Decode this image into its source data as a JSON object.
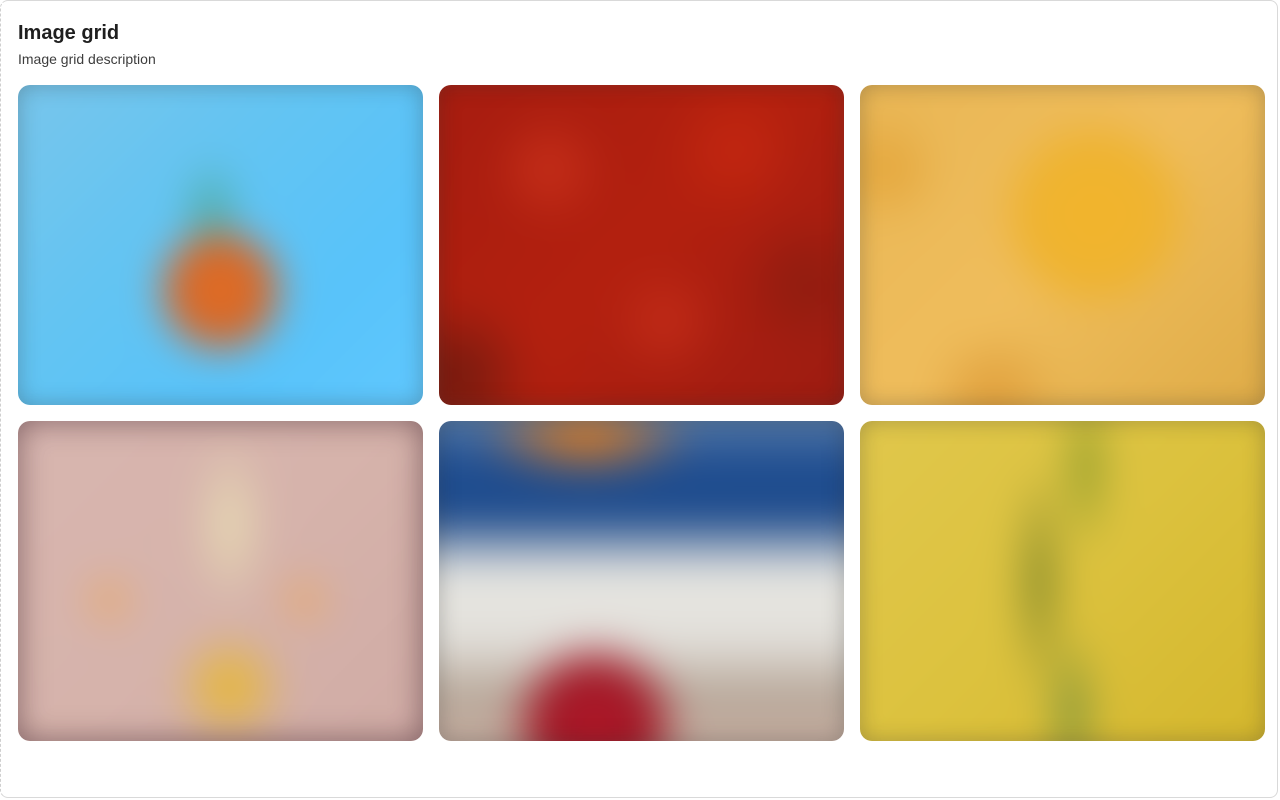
{
  "section": {
    "title": "Image grid",
    "description": "Image grid description"
  },
  "images": [
    {
      "name": "orange-on-blue",
      "colors": [
        "#62c9ff",
        "#e56e22"
      ]
    },
    {
      "name": "red-texture",
      "colors": [
        "#a51c10",
        "#c8301a"
      ]
    },
    {
      "name": "golden-yellow",
      "colors": [
        "#efbd5c",
        "#f3b52b"
      ]
    },
    {
      "name": "pink-bananas",
      "colors": [
        "#d8b6b0",
        "#e9b82a"
      ]
    },
    {
      "name": "striped-scene",
      "colors": [
        "#1c4a8c",
        "#e7e6e1",
        "#b01a2a"
      ]
    },
    {
      "name": "yellow-green",
      "colors": [
        "#dcc23e",
        "#788228"
      ]
    }
  ]
}
